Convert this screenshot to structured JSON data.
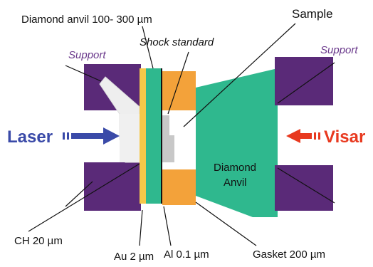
{
  "labels": {
    "diamond_anvil_top": "Diamond anvil 100- 300  µm",
    "shock_standard": "Shock standard",
    "sample": "Sample",
    "support_left": "Support",
    "support_right": "Support",
    "laser": "Laser",
    "visar": "Visar",
    "diamond_anvil_line1": "Diamond",
    "diamond_anvil_line2": "Anvil",
    "ch": "CH 20 µm",
    "au": "Au 2 µm",
    "al": "Al 0.1 µm",
    "gasket": "Gasket 200 µm"
  },
  "colors": {
    "support": "#5a2a78",
    "diamond": "#2fb88e",
    "gasket": "#f3a23a",
    "au": "#f6c84a",
    "ch": "#e8e8e8",
    "sample": "#ffffff",
    "shock_standard": "#c8c8c8",
    "laser_arrow": "#3a4aa8",
    "visar_arrow": "#e8391f"
  }
}
